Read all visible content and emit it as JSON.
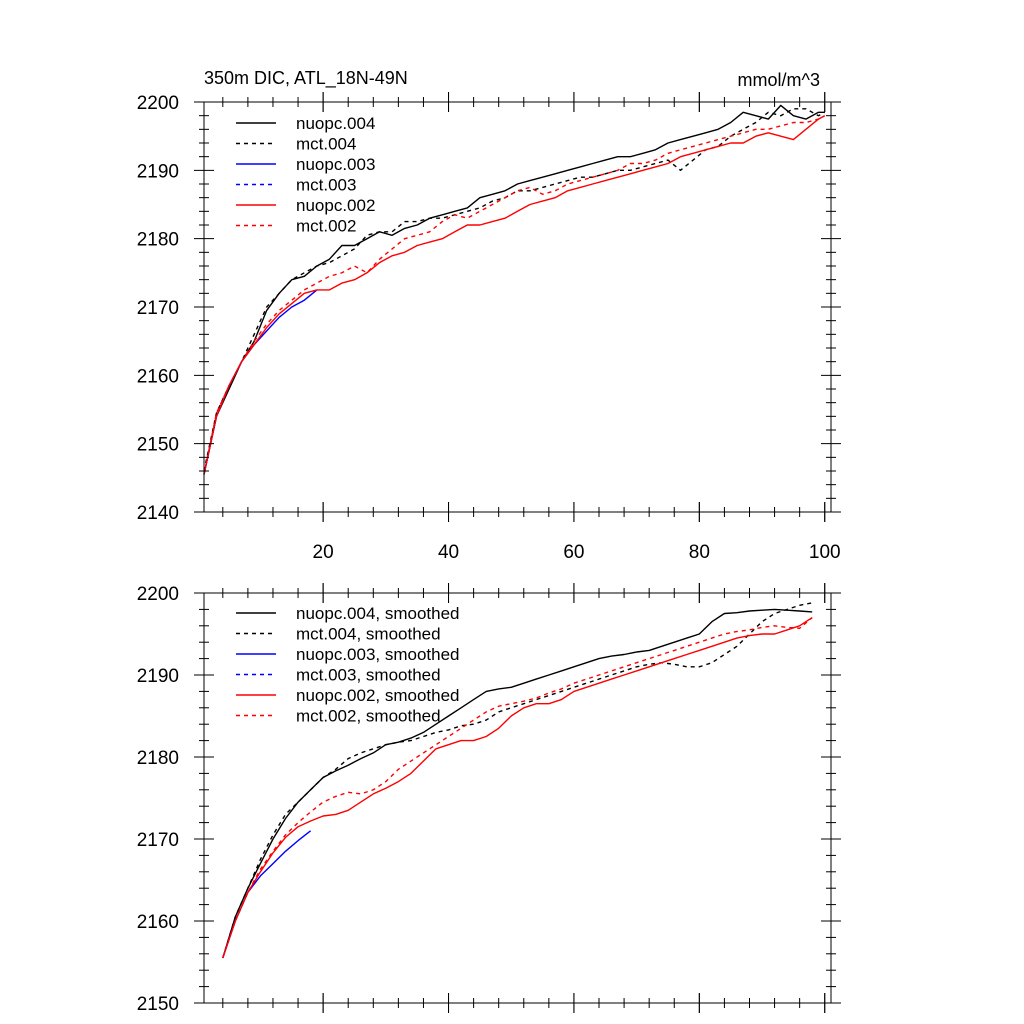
{
  "chart_data": [
    {
      "type": "line",
      "title": "350m DIC, ATL_18N-49N",
      "units": "mmol/m^3",
      "xlim": [
        1,
        101
      ],
      "ylim": [
        2140,
        2200
      ],
      "xticks": [
        20,
        40,
        60,
        80,
        100
      ],
      "yticks": [
        2140,
        2150,
        2160,
        2170,
        2180,
        2190,
        2200
      ],
      "legend_position": "top-left",
      "series": [
        {
          "name": "nuopc.004",
          "color": "#000000",
          "dash": "solid",
          "x": [
            1,
            3,
            5,
            7,
            9,
            11,
            13,
            15,
            17,
            19,
            21,
            23,
            25,
            27,
            29,
            31,
            33,
            35,
            37,
            39,
            41,
            43,
            45,
            47,
            49,
            51,
            53,
            55,
            57,
            59,
            61,
            63,
            65,
            67,
            69,
            71,
            73,
            75,
            77,
            79,
            81,
            83,
            85,
            87,
            89,
            91,
            93,
            95,
            97,
            99,
            100
          ],
          "y": [
            2145.5,
            2154,
            2158,
            2162,
            2165,
            2169.5,
            2172,
            2174,
            2174.5,
            2176,
            2177,
            2179,
            2179,
            2180,
            2181,
            2180.5,
            2181.5,
            2182,
            2183,
            2183.5,
            2184,
            2184.5,
            2186,
            2186.5,
            2187,
            2188,
            2188.5,
            2189,
            2189.5,
            2190,
            2190.5,
            2191,
            2191.5,
            2192,
            2192,
            2192.5,
            2193,
            2194,
            2194.5,
            2195,
            2195.5,
            2196,
            2197,
            2198.5,
            2198,
            2197.5,
            2199.5,
            2198,
            2197.5,
            2198.5,
            2198.5
          ]
        },
        {
          "name": "mct.004",
          "color": "#000000",
          "dash": "dashed",
          "x": [
            1,
            3,
            5,
            7,
            9,
            11,
            13,
            15,
            17,
            19,
            21,
            23,
            25,
            27,
            29,
            31,
            33,
            35,
            37,
            39,
            41,
            43,
            45,
            47,
            49,
            51,
            53,
            55,
            57,
            59,
            61,
            63,
            65,
            67,
            69,
            71,
            73,
            75,
            77,
            79,
            81,
            83,
            85,
            87,
            89,
            91,
            93,
            95,
            97,
            99,
            100
          ],
          "y": [
            2146,
            2154.5,
            2158.5,
            2162,
            2166,
            2170,
            2172,
            2174,
            2175,
            2176,
            2176.5,
            2177.5,
            2178.5,
            2180.5,
            2181,
            2181,
            2182.5,
            2182.5,
            2183,
            2183,
            2183.5,
            2184,
            2184.5,
            2185.5,
            2186,
            2187,
            2187,
            2187.5,
            2188,
            2188.5,
            2189,
            2189,
            2189.5,
            2190,
            2190,
            2190.5,
            2191,
            2191.5,
            2190,
            2191.5,
            2193,
            2193.5,
            2195,
            2196,
            2197,
            2198.5,
            2198,
            2199,
            2199,
            2198,
            2198.5
          ]
        },
        {
          "name": "nuopc.003",
          "color": "#0000ff",
          "dash": "solid",
          "x": [
            1,
            3,
            5,
            7,
            9,
            11,
            13,
            15,
            17,
            19
          ],
          "y": [
            2145.5,
            2154,
            2158.5,
            2162,
            2164.5,
            2166.5,
            2168.5,
            2170,
            2171,
            2172.5
          ]
        },
        {
          "name": "mct.003",
          "color": "#0000ff",
          "dash": "dashed",
          "x": [],
          "y": []
        },
        {
          "name": "nuopc.002",
          "color": "#ff0000",
          "dash": "solid",
          "x": [
            1,
            3,
            5,
            7,
            9,
            11,
            13,
            15,
            17,
            19,
            21,
            23,
            25,
            27,
            29,
            31,
            33,
            35,
            37,
            39,
            41,
            43,
            45,
            47,
            49,
            51,
            53,
            55,
            57,
            59,
            61,
            63,
            65,
            67,
            69,
            71,
            73,
            75,
            77,
            79,
            81,
            83,
            85,
            87,
            89,
            91,
            93,
            95,
            97,
            99,
            100
          ],
          "y": [
            2145.5,
            2154,
            2158.5,
            2162,
            2164.5,
            2167,
            2169,
            2170.5,
            2172,
            2172.5,
            2172.5,
            2173.5,
            2174,
            2175,
            2176.5,
            2177.5,
            2178,
            2179,
            2179.5,
            2180,
            2181,
            2182,
            2182,
            2182.5,
            2183,
            2184,
            2185,
            2185.5,
            2186,
            2187,
            2187.5,
            2188,
            2188.5,
            2189,
            2189.5,
            2190,
            2190.5,
            2191,
            2192,
            2192.5,
            2193,
            2193.5,
            2194,
            2194,
            2195,
            2195.5,
            2195,
            2194.5,
            2196,
            2197.5,
            2198
          ]
        },
        {
          "name": "mct.002",
          "color": "#ff0000",
          "dash": "dashed",
          "x": [
            1,
            3,
            5,
            7,
            9,
            11,
            13,
            15,
            17,
            19,
            21,
            23,
            25,
            27,
            29,
            31,
            33,
            35,
            37,
            39,
            41,
            43,
            45,
            47,
            49,
            51,
            53,
            55,
            57,
            59,
            61,
            63,
            65,
            67,
            69,
            71,
            73,
            75,
            77,
            79,
            81,
            83,
            85,
            87,
            89,
            91,
            93,
            95,
            97,
            99,
            100
          ],
          "y": [
            2145.5,
            2154.5,
            2158.5,
            2162,
            2165,
            2167.5,
            2169.5,
            2171,
            2172.5,
            2173.5,
            2174.5,
            2175,
            2176,
            2175,
            2177,
            2178.5,
            2180,
            2180.5,
            2181,
            2182.5,
            2183.5,
            2183,
            2184,
            2185,
            2186,
            2187,
            2187.5,
            2186.5,
            2187,
            2188,
            2188.5,
            2189,
            2189.5,
            2190,
            2191,
            2191,
            2191.5,
            2192.5,
            2193,
            2193.5,
            2194,
            2194.5,
            2195,
            2195.5,
            2196,
            2196,
            2196.5,
            2197,
            2197,
            2197.5,
            2198
          ]
        }
      ]
    },
    {
      "type": "line",
      "title": "",
      "xlim": [
        1,
        101
      ],
      "ylim": [
        2150,
        2200
      ],
      "xticks": [
        20,
        40,
        60,
        80,
        100
      ],
      "yticks": [
        2150,
        2160,
        2170,
        2180,
        2190,
        2200
      ],
      "legend_position": "top-left",
      "series": [
        {
          "name": "nuopc.004, smoothed",
          "color": "#000000",
          "dash": "solid",
          "x": [
            4,
            6,
            8,
            10,
            12,
            14,
            16,
            18,
            20,
            22,
            24,
            26,
            28,
            30,
            32,
            34,
            36,
            38,
            40,
            42,
            44,
            46,
            48,
            50,
            52,
            54,
            56,
            58,
            60,
            62,
            64,
            66,
            68,
            70,
            72,
            74,
            76,
            78,
            80,
            82,
            84,
            86,
            88,
            90,
            92,
            94,
            96,
            98
          ],
          "y": [
            2155.5,
            2160.5,
            2164,
            2167,
            2170,
            2172.5,
            2174.5,
            2176,
            2177.5,
            2178.3,
            2179,
            2179.8,
            2180.5,
            2181.5,
            2181.8,
            2182.3,
            2183,
            2184,
            2185,
            2186,
            2187,
            2188,
            2188.3,
            2188.5,
            2189,
            2189.5,
            2190,
            2190.5,
            2191,
            2191.5,
            2192,
            2192.3,
            2192.5,
            2192.8,
            2193,
            2193.5,
            2194,
            2194.5,
            2195,
            2196.5,
            2197.5,
            2197.6,
            2197.8,
            2197.9,
            2198,
            2197.9,
            2197.8,
            2197.7
          ]
        },
        {
          "name": "mct.004, smoothed",
          "color": "#000000",
          "dash": "dashed",
          "x": [
            4,
            6,
            8,
            10,
            12,
            14,
            16,
            18,
            20,
            22,
            24,
            26,
            28,
            30,
            32,
            34,
            36,
            38,
            40,
            42,
            44,
            46,
            48,
            50,
            52,
            54,
            56,
            58,
            60,
            62,
            64,
            66,
            68,
            70,
            72,
            74,
            76,
            78,
            80,
            82,
            84,
            86,
            88,
            90,
            92,
            94,
            96,
            98
          ],
          "y": [
            2155.5,
            2160.5,
            2164,
            2167.5,
            2170.5,
            2173,
            2174.5,
            2176,
            2177.5,
            2178.5,
            2179.8,
            2180.5,
            2181,
            2181.5,
            2181.8,
            2182,
            2182.5,
            2183,
            2183.3,
            2183.8,
            2184,
            2184.5,
            2185.5,
            2186,
            2186.5,
            2187,
            2187.5,
            2188,
            2188.5,
            2189,
            2189.5,
            2190,
            2190.5,
            2191,
            2191.3,
            2191.5,
            2191.3,
            2191,
            2191,
            2191.5,
            2192.5,
            2193.5,
            2195,
            2196.5,
            2197.5,
            2198,
            2198.5,
            2198.8
          ]
        },
        {
          "name": "nuopc.003, smoothed",
          "color": "#0000ff",
          "dash": "solid",
          "x": [
            4,
            6,
            8,
            10,
            12,
            14,
            16,
            18
          ],
          "y": [
            2155.5,
            2160,
            2163.5,
            2165.5,
            2167,
            2168.5,
            2169.8,
            2171
          ]
        },
        {
          "name": "mct.003, smoothed",
          "color": "#0000ff",
          "dash": "dashed",
          "x": [],
          "y": []
        },
        {
          "name": "nuopc.002, smoothed",
          "color": "#ff0000",
          "dash": "solid",
          "x": [
            4,
            6,
            8,
            10,
            12,
            14,
            16,
            18,
            20,
            22,
            24,
            26,
            28,
            30,
            32,
            34,
            36,
            38,
            40,
            42,
            44,
            46,
            48,
            50,
            52,
            54,
            56,
            58,
            60,
            62,
            64,
            66,
            68,
            70,
            72,
            74,
            76,
            78,
            80,
            82,
            84,
            86,
            88,
            90,
            92,
            94,
            96,
            98
          ],
          "y": [
            2155.5,
            2160,
            2163.5,
            2166,
            2168.3,
            2170.2,
            2171.5,
            2172.2,
            2172.8,
            2173,
            2173.5,
            2174.5,
            2175.5,
            2176.2,
            2177,
            2178,
            2179.5,
            2181,
            2181.5,
            2182,
            2182,
            2182.5,
            2183.5,
            2185,
            2186,
            2186.5,
            2186.5,
            2187,
            2188,
            2188.5,
            2189,
            2189.5,
            2190,
            2190.5,
            2191,
            2191.5,
            2192,
            2192.5,
            2193,
            2193.5,
            2194,
            2194.5,
            2194.8,
            2195,
            2195,
            2195.5,
            2196,
            2197
          ]
        },
        {
          "name": "mct.002, smoothed",
          "color": "#ff0000",
          "dash": "dashed",
          "x": [
            4,
            6,
            8,
            10,
            12,
            14,
            16,
            18,
            20,
            22,
            24,
            26,
            28,
            30,
            32,
            34,
            36,
            38,
            40,
            42,
            44,
            46,
            48,
            50,
            52,
            54,
            56,
            58,
            60,
            62,
            64,
            66,
            68,
            70,
            72,
            74,
            76,
            78,
            80,
            82,
            84,
            86,
            88,
            90,
            92,
            94,
            96,
            98
          ],
          "y": [
            2155.5,
            2160,
            2163.5,
            2166.3,
            2168.5,
            2170.5,
            2172,
            2173.3,
            2174.5,
            2175.2,
            2175.7,
            2175.5,
            2176,
            2177,
            2178.5,
            2179.5,
            2180.5,
            2181.5,
            2182.5,
            2183.5,
            2184.5,
            2185.5,
            2186.2,
            2186.5,
            2186.8,
            2187.2,
            2187.8,
            2188.3,
            2189,
            2189.5,
            2190,
            2190.5,
            2191,
            2191.5,
            2192,
            2192.5,
            2193,
            2193.5,
            2194,
            2194.5,
            2195,
            2195.3,
            2195.5,
            2195.8,
            2196,
            2195.8,
            2195.7,
            2197
          ]
        }
      ]
    }
  ]
}
